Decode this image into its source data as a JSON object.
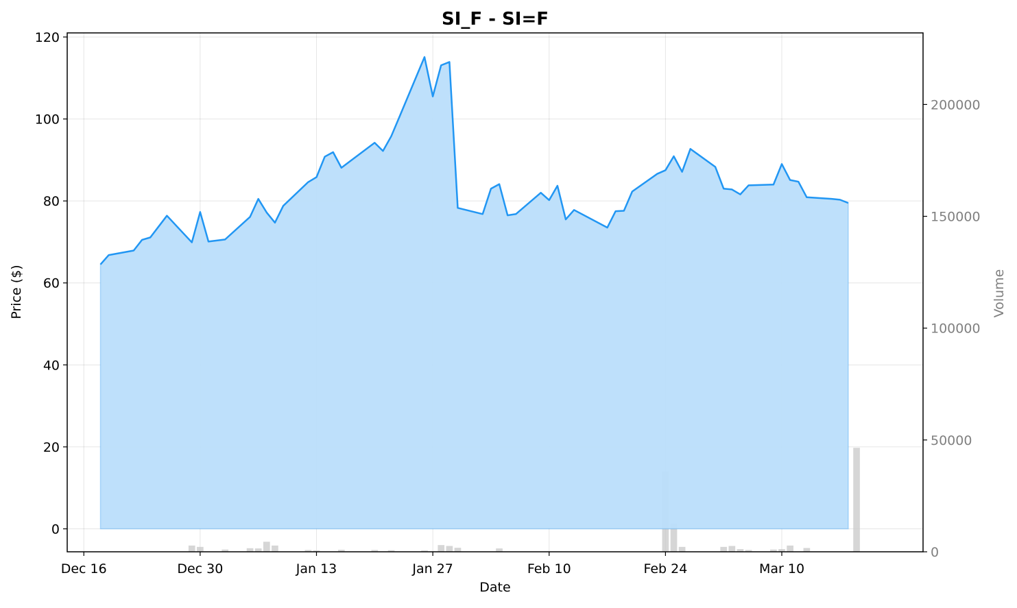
{
  "chart_data": {
    "type": "area",
    "title": "SI_F - SI=F",
    "xlabel": "Date",
    "ylabel": "Price ($)",
    "y2label": "Volume",
    "ylim": [
      -5.6,
      121
    ],
    "y2lim": [
      0,
      232000
    ],
    "y_ticks": [
      0,
      20,
      40,
      60,
      80,
      100,
      120
    ],
    "y2_ticks": [
      0,
      50000,
      100000,
      150000,
      200000
    ],
    "x_ticks": [
      {
        "date": "2024-12-16",
        "label": "Dec 16"
      },
      {
        "date": "2024-12-30",
        "label": "Dec 30"
      },
      {
        "date": "2025-01-13",
        "label": "Jan 13"
      },
      {
        "date": "2025-01-27",
        "label": "Jan 27"
      },
      {
        "date": "2025-02-10",
        "label": "Feb 10"
      },
      {
        "date": "2025-02-24",
        "label": "Feb 24"
      },
      {
        "date": "2025-03-10",
        "label": "Mar 10"
      }
    ],
    "xlim": [
      "2024-12-14",
      "2025-03-27"
    ],
    "grid": true,
    "colors": {
      "line": "#2196f3",
      "fill": "#bbdefb",
      "volume": "#c8c8c8",
      "volume_axis": "#808080"
    },
    "series": [
      {
        "type": "area",
        "axis": "left",
        "points": [
          [
            "2024-12-18",
            64.5
          ],
          [
            "2024-12-19",
            66.8
          ],
          [
            "2024-12-22",
            67.9
          ],
          [
            "2024-12-23",
            70.5
          ],
          [
            "2024-12-24",
            71.1
          ],
          [
            "2024-12-26",
            76.4
          ],
          [
            "2024-12-29",
            69.9
          ],
          [
            "2024-12-30",
            77.3
          ],
          [
            "2024-12-31",
            70.1
          ],
          [
            "2025-01-02",
            70.6
          ],
          [
            "2025-01-05",
            76.1
          ],
          [
            "2025-01-06",
            80.5
          ],
          [
            "2025-01-07",
            77.2
          ],
          [
            "2025-01-08",
            74.7
          ],
          [
            "2025-01-09",
            78.8
          ],
          [
            "2025-01-12",
            84.6
          ],
          [
            "2025-01-13",
            85.8
          ],
          [
            "2025-01-14",
            90.8
          ],
          [
            "2025-01-15",
            91.9
          ],
          [
            "2025-01-16",
            88.1
          ],
          [
            "2025-01-20",
            94.2
          ],
          [
            "2025-01-21",
            92.2
          ],
          [
            "2025-01-22",
            95.8
          ],
          [
            "2025-01-23",
            100.6
          ],
          [
            "2025-01-26",
            115.1
          ],
          [
            "2025-01-27",
            105.5
          ],
          [
            "2025-01-28",
            113.1
          ],
          [
            "2025-01-29",
            113.9
          ],
          [
            "2025-01-30",
            78.3
          ],
          [
            "2025-02-02",
            76.8
          ],
          [
            "2025-02-03",
            83.0
          ],
          [
            "2025-02-04",
            84.1
          ],
          [
            "2025-02-05",
            76.5
          ],
          [
            "2025-02-06",
            76.8
          ],
          [
            "2025-02-09",
            82.0
          ],
          [
            "2025-02-10",
            80.2
          ],
          [
            "2025-02-11",
            83.7
          ],
          [
            "2025-02-12",
            75.5
          ],
          [
            "2025-02-13",
            77.8
          ],
          [
            "2025-02-17",
            73.5
          ],
          [
            "2025-02-18",
            77.5
          ],
          [
            "2025-02-19",
            77.6
          ],
          [
            "2025-02-20",
            82.3
          ],
          [
            "2025-02-23",
            86.6
          ],
          [
            "2025-02-24",
            87.5
          ],
          [
            "2025-02-25",
            90.9
          ],
          [
            "2025-02-26",
            87.1
          ],
          [
            "2025-02-27",
            92.7
          ],
          [
            "2025-03-02",
            88.3
          ],
          [
            "2025-03-03",
            83.0
          ],
          [
            "2025-03-04",
            82.8
          ],
          [
            "2025-03-05",
            81.6
          ],
          [
            "2025-03-06",
            83.8
          ],
          [
            "2025-03-09",
            84.0
          ],
          [
            "2025-03-10",
            89.0
          ],
          [
            "2025-03-11",
            85.1
          ],
          [
            "2025-03-12",
            84.7
          ],
          [
            "2025-03-13",
            80.9
          ],
          [
            "2025-03-16",
            80.5
          ],
          [
            "2025-03-17",
            80.3
          ],
          [
            "2025-03-18",
            79.5
          ]
        ]
      },
      {
        "type": "bar",
        "axis": "right",
        "points": [
          [
            "2024-12-29",
            2800
          ],
          [
            "2024-12-30",
            2200
          ],
          [
            "2025-01-02",
            1000
          ],
          [
            "2025-01-05",
            1600
          ],
          [
            "2025-01-06",
            1500
          ],
          [
            "2025-01-07",
            4500
          ],
          [
            "2025-01-08",
            2800
          ],
          [
            "2025-01-12",
            800
          ],
          [
            "2025-01-13",
            600
          ],
          [
            "2025-01-16",
            900
          ],
          [
            "2025-01-20",
            800
          ],
          [
            "2025-01-22",
            700
          ],
          [
            "2025-01-26",
            600
          ],
          [
            "2025-01-28",
            3000
          ],
          [
            "2025-01-29",
            2600
          ],
          [
            "2025-01-30",
            1800
          ],
          [
            "2025-02-04",
            1500
          ],
          [
            "2025-02-24",
            36000
          ],
          [
            "2025-02-25",
            12500
          ],
          [
            "2025-02-26",
            2200
          ],
          [
            "2025-03-03",
            2200
          ],
          [
            "2025-03-04",
            2600
          ],
          [
            "2025-03-05",
            1200
          ],
          [
            "2025-03-06",
            800
          ],
          [
            "2025-03-09",
            1000
          ],
          [
            "2025-03-10",
            1200
          ],
          [
            "2025-03-11",
            2800
          ],
          [
            "2025-03-13",
            1700
          ],
          [
            "2025-03-19",
            46500
          ]
        ]
      }
    ]
  }
}
